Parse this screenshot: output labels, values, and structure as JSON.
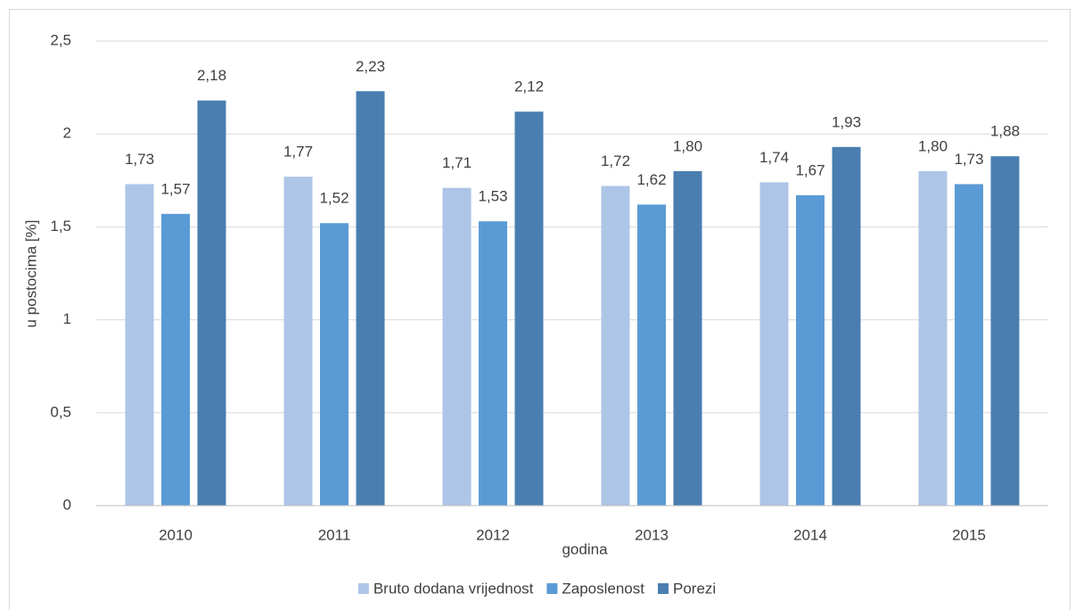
{
  "chart_data": {
    "type": "bar",
    "categories": [
      "2010",
      "2011",
      "2012",
      "2013",
      "2014",
      "2015"
    ],
    "series": [
      {
        "name": "Bruto dodana vrijednost",
        "color": "#adc5e7",
        "values": [
          1.73,
          1.77,
          1.71,
          1.72,
          1.74,
          1.8
        ],
        "value_labels": [
          "1,73",
          "1,77",
          "1,71",
          "1,72",
          "1,74",
          "1,80"
        ]
      },
      {
        "name": "Zaposlenost",
        "color": "#5b9bd5",
        "values": [
          1.57,
          1.52,
          1.53,
          1.62,
          1.67,
          1.73
        ],
        "value_labels": [
          "1,57",
          "1,52",
          "1,53",
          "1,62",
          "1,67",
          "1,73"
        ]
      },
      {
        "name": "Porezi",
        "color": "#4a7eb0",
        "values": [
          2.18,
          2.23,
          2.12,
          1.8,
          1.93,
          1.88
        ],
        "value_labels": [
          "2,18",
          "2,23",
          "2,12",
          "1,80",
          "1,93",
          "1,88"
        ]
      }
    ],
    "xlabel": "godina",
    "ylabel": "u postocima [%]",
    "ylim": [
      0,
      2.5
    ],
    "yticks": [
      0,
      {
        "value": 0.5,
        "label": "0,5"
      },
      1,
      {
        "value": 1.5,
        "label": "1,5"
      },
      2,
      {
        "value": 2.5,
        "label": "2,5"
      }
    ],
    "grid": true,
    "legend": "bottom"
  }
}
